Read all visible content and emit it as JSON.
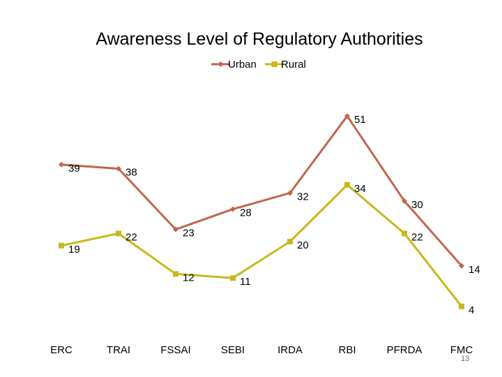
{
  "slide_number": "13",
  "colors": {
    "urban": "#C0664A",
    "rural": "#C9B81A"
  },
  "chart_data": {
    "type": "line",
    "title": "Awareness Level of Regulatory Authorities",
    "xlabel": "",
    "ylabel": "",
    "categories": [
      "ERC",
      "TRAI",
      "FSSAI",
      "SEBI",
      "IRDA",
      "RBI",
      "PFRDA",
      "FMC"
    ],
    "ylim": [
      0,
      55
    ],
    "grid": false,
    "legend": "top",
    "series": [
      {
        "name": "Urban",
        "marker": "diamond",
        "values": [
          39,
          38,
          23,
          28,
          32,
          51,
          30,
          14
        ]
      },
      {
        "name": "Rural",
        "marker": "square",
        "values": [
          19,
          22,
          12,
          11,
          20,
          34,
          22,
          4
        ]
      }
    ]
  }
}
